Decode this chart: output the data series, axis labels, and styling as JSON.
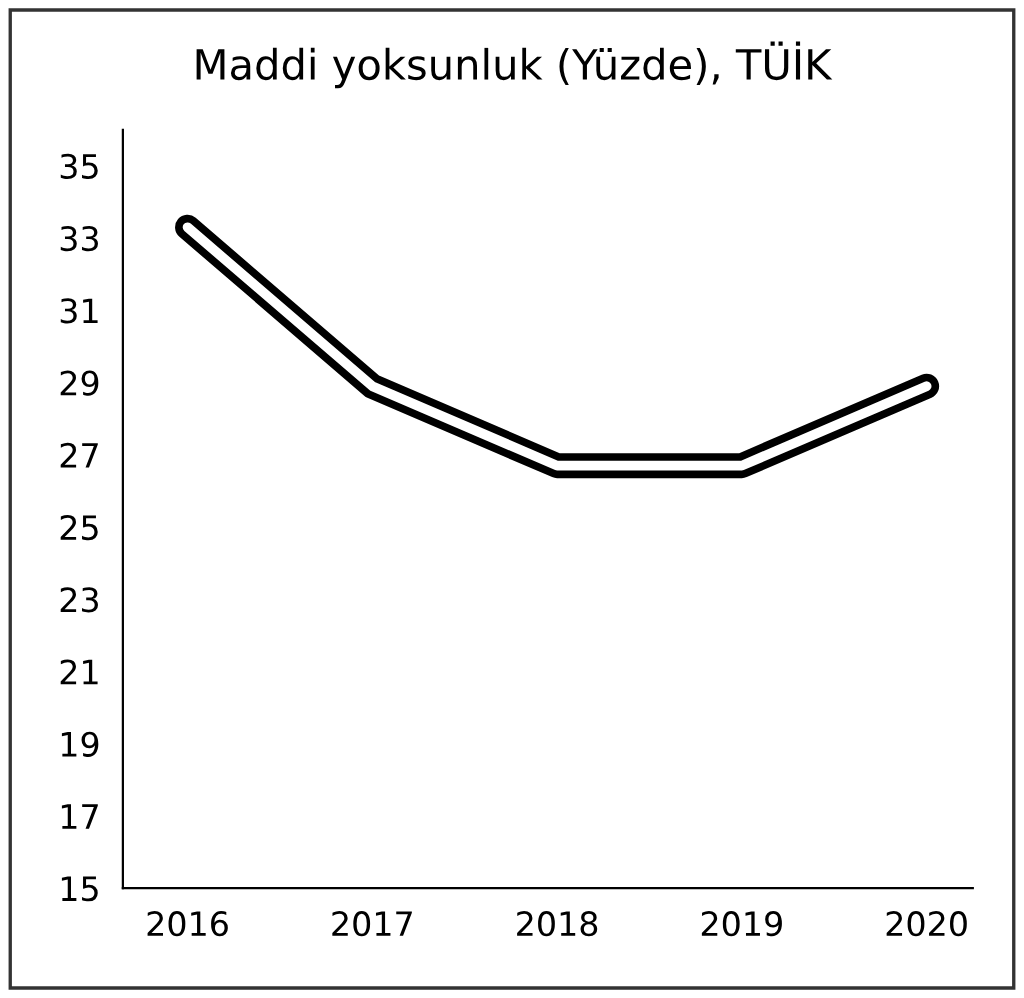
{
  "chart_data": {
    "type": "line",
    "title": "Maddi yoksunluk (Yüzde), TÜİK",
    "categories": [
      "2016",
      "2017",
      "2018",
      "2019",
      "2020"
    ],
    "series": [
      {
        "color": "#000000",
        "values": [
          33.3,
          28.9,
          26.7,
          26.7,
          28.9
        ]
      }
    ],
    "ylim": [
      15,
      36
    ],
    "yticks": [
      15,
      17,
      19,
      21,
      23,
      25,
      27,
      29,
      31,
      33,
      35
    ],
    "grid": false,
    "legend": false,
    "marker": "none",
    "line_style": "solid"
  }
}
